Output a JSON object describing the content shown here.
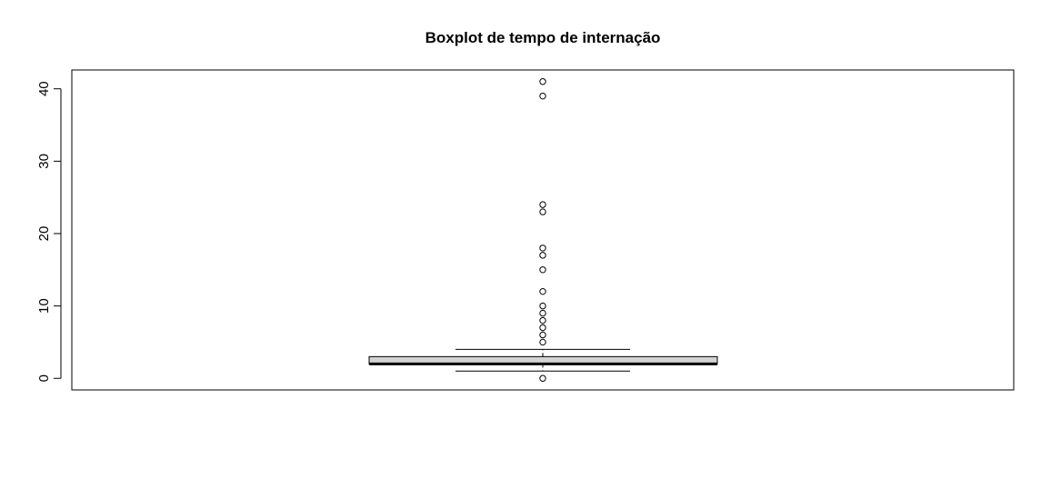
{
  "chart_data": {
    "type": "boxplot",
    "title": "Boxplot de tempo de internação",
    "xlabel": "",
    "ylabel": "",
    "ylim": [
      -1.6,
      42.6
    ],
    "yticks": [
      0,
      10,
      20,
      30,
      40
    ],
    "ytick_labels": [
      "0",
      "10",
      "20",
      "30",
      "40"
    ],
    "grid": false,
    "box": {
      "whisker_low": 1,
      "q1": 2,
      "median": 2,
      "q3": 3,
      "whisker_high": 4
    },
    "outliers": [
      0,
      5,
      6,
      7,
      8,
      9,
      10,
      12,
      15,
      17,
      18,
      23,
      24,
      39,
      41
    ],
    "colors": {
      "box_fill": "#d3d3d3",
      "stroke": "#000000"
    }
  }
}
